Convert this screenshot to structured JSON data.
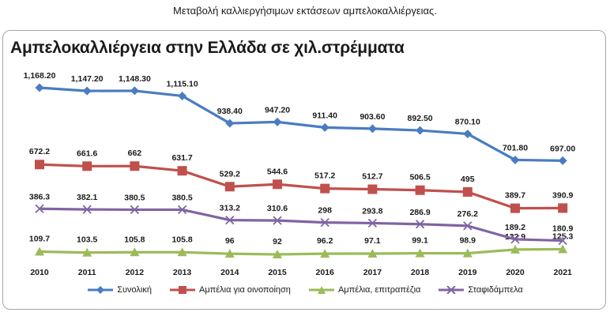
{
  "caption": "Μεταβολή καλλιεργήσιμων εκτάσεων αμπελοκαλλιέργειας.",
  "chart_data": {
    "type": "line",
    "title": "Αμπελοκαλλιέργεια στην Ελλάδα σε χιλ.στρέμματα",
    "categories": [
      "2010",
      "2011",
      "2012",
      "2013",
      "2014",
      "2015",
      "2016",
      "2017",
      "2018",
      "2019",
      "2020",
      "2021"
    ],
    "ylim": [
      0,
      1250
    ],
    "grid": false,
    "legend": "bottom",
    "series": [
      {
        "name": "Συνολική",
        "color": "#4a7cc1",
        "marker": "diamond",
        "values": [
          1168.2,
          1147.2,
          1148.3,
          1115.1,
          938.4,
          947.2,
          911.4,
          903.6,
          892.5,
          870.1,
          701.8,
          697.0
        ],
        "labels": [
          "1,168.20",
          "1,147.20",
          "1,148.30",
          "1,115.10",
          "938.40",
          "947.20",
          "911.40",
          "903.60",
          "892.50",
          "870.10",
          "701.80",
          "697.00"
        ]
      },
      {
        "name": "Αμπέλια για οινοποίηση",
        "color": "#c0504d",
        "marker": "square",
        "values": [
          672.2,
          661.6,
          662,
          631.7,
          529.2,
          544.6,
          517.2,
          512.7,
          506.5,
          495,
          389.7,
          390.9
        ],
        "labels": [
          "672.2",
          "661.6",
          "662",
          "631.7",
          "529.2",
          "544.6",
          "517.2",
          "512.7",
          "506.5",
          "495",
          "389.7",
          "390.9"
        ]
      },
      {
        "name": "Αμπέλια, επιτραπέζια",
        "color": "#9bbb59",
        "marker": "triangle",
        "values": [
          109.7,
          103.5,
          105.8,
          105.8,
          96,
          92,
          96.2,
          97.1,
          99.1,
          98.9,
          122.9,
          125.3
        ],
        "labels": [
          "109.7",
          "103.5",
          "105.8",
          "105.8",
          "96",
          "92",
          "96.2",
          "97.1",
          "99.1",
          "98.9",
          "122.9",
          "125.3"
        ]
      },
      {
        "name": "Σταφιδάμπελα",
        "color": "#8064a2",
        "marker": "x",
        "values": [
          386.3,
          382.1,
          380.5,
          380.5,
          313.2,
          310.6,
          298,
          293.8,
          286.9,
          276.2,
          189.2,
          180.9
        ],
        "labels": [
          "386.3",
          "382.1",
          "380.5",
          "380.5",
          "313.2",
          "310.6",
          "298",
          "293.8",
          "286.9",
          "276.2",
          "189.2",
          "180.9"
        ]
      }
    ]
  }
}
